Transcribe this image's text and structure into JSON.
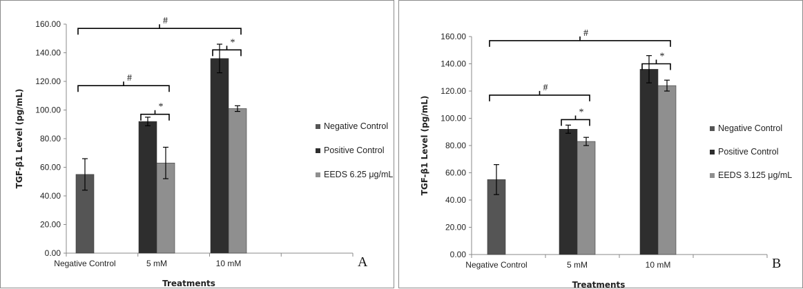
{
  "colors": {
    "negative_control": "#555555",
    "positive_control": "#2e2e2e",
    "eeds": "#8f8f8f",
    "axis": "#888888",
    "text": "#222222"
  },
  "chart_data": [
    {
      "type": "bar",
      "panel_label": "A",
      "xlabel": "Treatments",
      "ylabel": "TGF-β1 Level (pg/mL)",
      "ylim": [
        0,
        160
      ],
      "ytick_step": 20,
      "ytick_labels": [
        "0.00",
        "20.00",
        "40.00",
        "60.00",
        "80.00",
        "100.00",
        "120.00",
        "140.00",
        "160.00"
      ],
      "categories": [
        "Negative Control",
        "5 mM",
        "10 mM"
      ],
      "series": [
        {
          "name": "Negative Control",
          "color": "#555555",
          "values": [
            55,
            null,
            null
          ],
          "errors": [
            11,
            null,
            null
          ]
        },
        {
          "name": "Positive Control",
          "color": "#2e2e2e",
          "values": [
            null,
            92,
            136
          ],
          "errors": [
            null,
            3,
            10
          ]
        },
        {
          "name": "EEDS 6.25 μg/mL",
          "color": "#8f8f8f",
          "values": [
            null,
            63,
            101
          ],
          "errors": [
            null,
            11,
            2
          ]
        }
      ],
      "legend_position": "right",
      "annotations": [
        {
          "label": "#",
          "from": {
            "category": 0,
            "series": 0
          },
          "to": {
            "category": 2,
            "series": 2
          },
          "y": 157
        },
        {
          "label": "#",
          "from": {
            "category": 0,
            "series": 0
          },
          "to": {
            "category": 1,
            "series": 2
          },
          "y": 117
        },
        {
          "label": "*",
          "from": {
            "category": 1,
            "series": 1
          },
          "to": {
            "category": 1,
            "series": 2
          },
          "y": 97
        },
        {
          "label": "*",
          "from": {
            "category": 2,
            "series": 1
          },
          "to": {
            "category": 2,
            "series": 2
          },
          "y": 142
        }
      ]
    },
    {
      "type": "bar",
      "panel_label": "B",
      "xlabel": "Treatments",
      "ylabel": "TGF-β1 Level (pg/mL)",
      "ylim": [
        0,
        160
      ],
      "ytick_step": 20,
      "ytick_labels": [
        "0.00",
        "20.00",
        "40.00",
        "60.00",
        "80.00",
        "100.00",
        "120.00",
        "140.00",
        "160.00"
      ],
      "categories": [
        "Negative Control",
        "5 mM",
        "10 mM"
      ],
      "series": [
        {
          "name": "Negative Control",
          "color": "#555555",
          "values": [
            55,
            null,
            null
          ],
          "errors": [
            11,
            null,
            null
          ]
        },
        {
          "name": "Positive Control",
          "color": "#2e2e2e",
          "values": [
            null,
            92,
            136
          ],
          "errors": [
            null,
            3,
            10
          ]
        },
        {
          "name": "EEDS 3.125 μg/mL",
          "color": "#8f8f8f",
          "values": [
            null,
            83,
            124
          ],
          "errors": [
            null,
            3,
            4
          ]
        }
      ],
      "legend_position": "right",
      "annotations": [
        {
          "label": "#",
          "from": {
            "category": 0,
            "series": 0
          },
          "to": {
            "category": 2,
            "series": 2
          },
          "y": 157
        },
        {
          "label": "#",
          "from": {
            "category": 0,
            "series": 0
          },
          "to": {
            "category": 1,
            "series": 2
          },
          "y": 117
        },
        {
          "label": "*",
          "from": {
            "category": 1,
            "series": 1
          },
          "to": {
            "category": 1,
            "series": 2
          },
          "y": 99
        },
        {
          "label": "*",
          "from": {
            "category": 2,
            "series": 1
          },
          "to": {
            "category": 2,
            "series": 2
          },
          "y": 140
        }
      ]
    }
  ]
}
